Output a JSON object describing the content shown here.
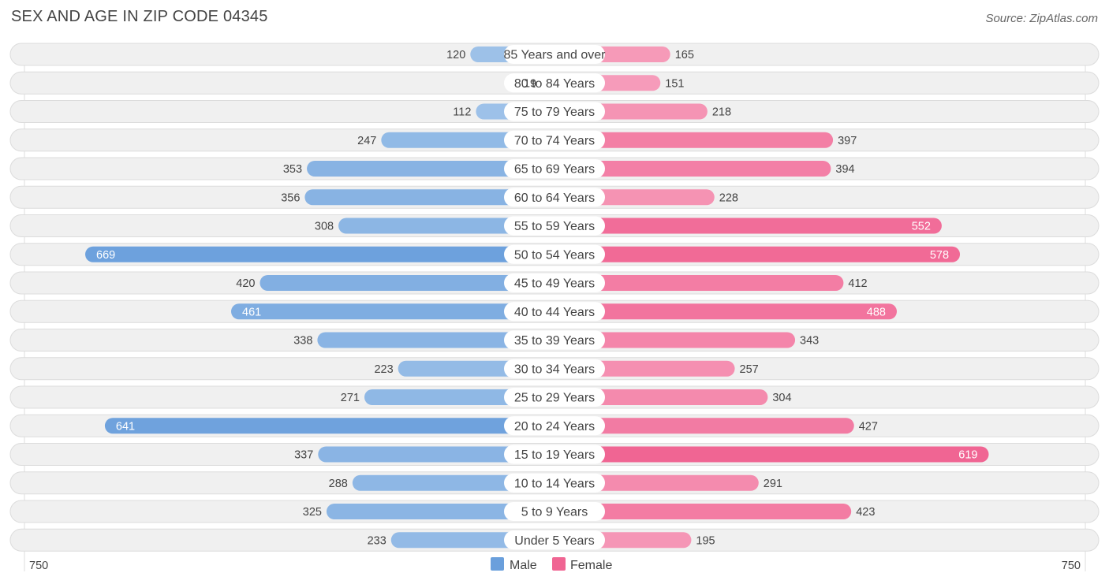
{
  "title": "SEX AND AGE IN ZIP CODE 04345",
  "source": "Source: ZipAtlas.com",
  "colors": {
    "male_light": "#a7c8eb",
    "male_dark": "#6a9fdc",
    "female_light": "#f8adc6",
    "female_dark": "#f06593"
  },
  "chart_data": {
    "type": "bar",
    "orientation": "horizontal-diverging",
    "categories": [
      "85 Years and over",
      "80 to 84 Years",
      "75 to 79 Years",
      "70 to 74 Years",
      "65 to 69 Years",
      "60 to 64 Years",
      "55 to 59 Years",
      "50 to 54 Years",
      "45 to 49 Years",
      "40 to 44 Years",
      "35 to 39 Years",
      "30 to 34 Years",
      "25 to 29 Years",
      "20 to 24 Years",
      "15 to 19 Years",
      "10 to 14 Years",
      "5 to 9 Years",
      "Under 5 Years"
    ],
    "series": [
      {
        "name": "Male",
        "values": [
          120,
          19,
          112,
          247,
          353,
          356,
          308,
          669,
          420,
          461,
          338,
          223,
          271,
          641,
          337,
          288,
          325,
          233
        ]
      },
      {
        "name": "Female",
        "values": [
          165,
          151,
          218,
          397,
          394,
          228,
          552,
          578,
          412,
          488,
          343,
          257,
          304,
          427,
          619,
          291,
          423,
          195
        ]
      }
    ],
    "xlim": [
      -750,
      750
    ],
    "axis_left_label": "750",
    "axis_right_label": "750",
    "legend": [
      "Male",
      "Female"
    ],
    "legend_position": "bottom-center"
  }
}
